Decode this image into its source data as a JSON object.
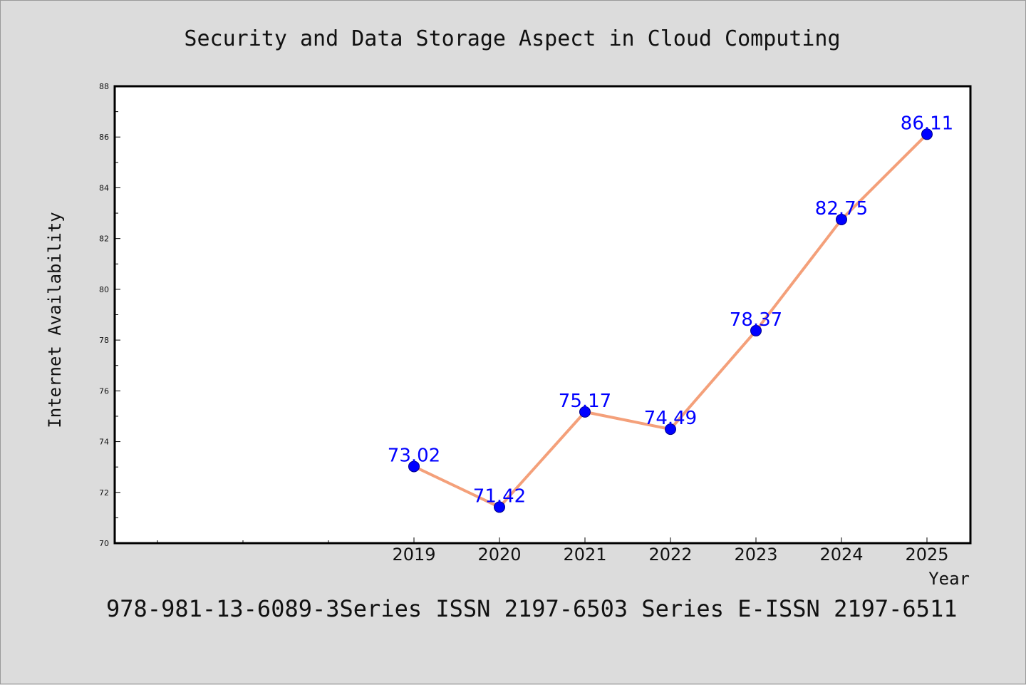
{
  "footer": "978-981-13-6089-3Series ISSN 2197-6503 Series E-ISSN 2197-6511",
  "colors": {
    "background": "#dcdcdc",
    "plot_background": "#ffffff",
    "line": "#f4a07a",
    "marker": "#0000ff",
    "data_label": "#0000ff"
  },
  "chart_data": {
    "type": "line",
    "title": "Security and Data Storage Aspect in Cloud Computing",
    "xlabel": "Year",
    "ylabel": "Internet Availability",
    "x": [
      "2019",
      "2020",
      "2021",
      "2022",
      "2023",
      "2024",
      "2025"
    ],
    "series": [
      {
        "values": [
          73.02,
          71.42,
          75.17,
          74.49,
          78.37,
          82.75,
          86.11
        ],
        "labels": [
          "73.02",
          "71.42",
          "75.17",
          "74.49",
          "78.37",
          "82.75",
          "86.11"
        ]
      }
    ],
    "ylim": [
      70,
      88
    ],
    "yticks": [
      "70",
      "72",
      "74",
      "76",
      "78",
      "80",
      "82",
      "84",
      "86",
      "88"
    ],
    "grid": false,
    "legend": "none"
  }
}
